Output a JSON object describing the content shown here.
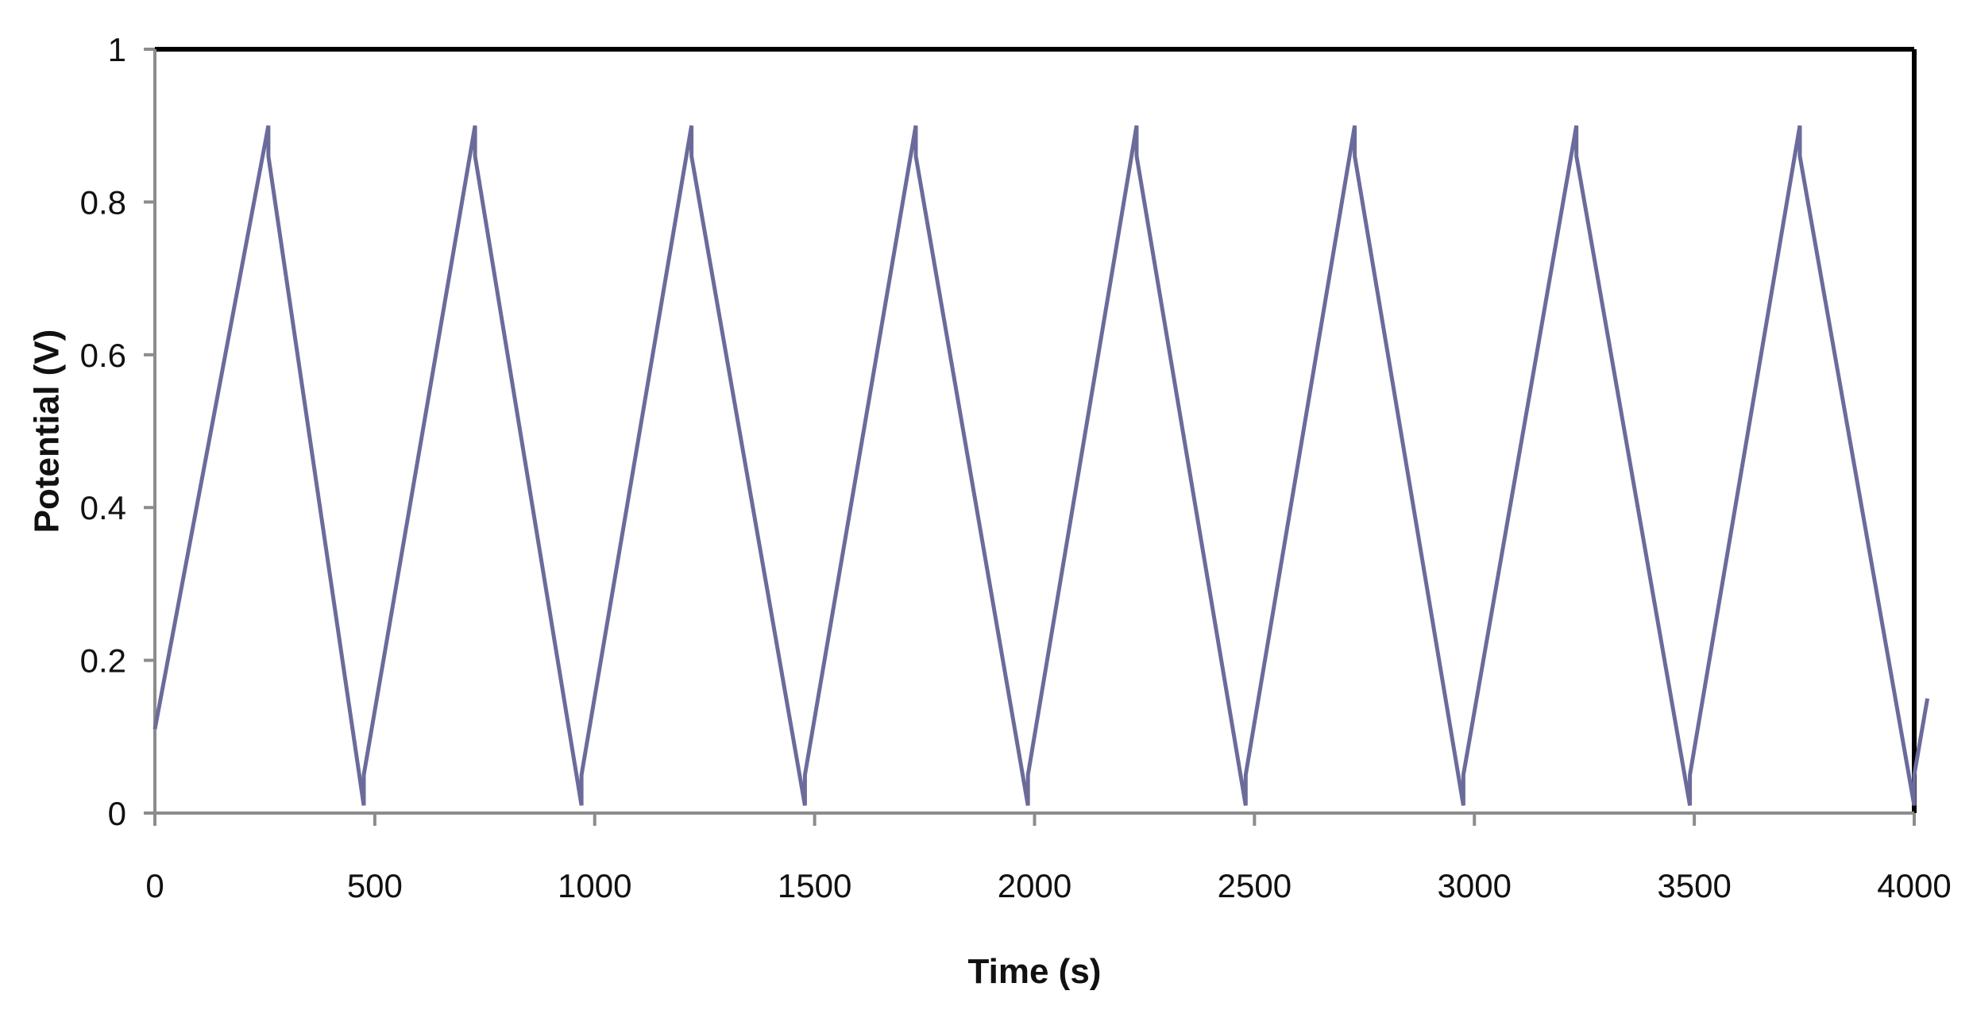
{
  "chart_data": {
    "type": "line",
    "title": "",
    "xlabel": "Time (s)",
    "ylabel": "Potential (V)",
    "xlim": [
      0,
      4000
    ],
    "ylim": [
      0,
      1
    ],
    "x_ticks": [
      0,
      500,
      1000,
      1500,
      2000,
      2500,
      3000,
      3500,
      4000
    ],
    "y_ticks": [
      0,
      0.2,
      0.4,
      0.6,
      0.8,
      1
    ],
    "y_tick_labels": [
      "0",
      "0.2",
      "0.4",
      "0.6",
      "0.8",
      "1"
    ],
    "grid": false,
    "legend": "none",
    "series": [
      {
        "color": "#6b6b9b",
        "x": [
          0,
          258,
          258,
          475,
          475,
          728,
          728,
          970,
          970,
          1220,
          1220,
          1478,
          1478,
          1730,
          1730,
          1985,
          1985,
          2232,
          2232,
          2480,
          2480,
          2728,
          2728,
          2975,
          2975,
          3232,
          3232,
          3490,
          3490,
          3740,
          3740,
          4000,
          4000,
          4030
        ],
        "y": [
          0.11,
          0.9,
          0.86,
          0.01,
          0.05,
          0.9,
          0.86,
          0.01,
          0.05,
          0.9,
          0.86,
          0.01,
          0.05,
          0.9,
          0.86,
          0.01,
          0.05,
          0.9,
          0.86,
          0.01,
          0.05,
          0.9,
          0.86,
          0.01,
          0.05,
          0.9,
          0.86,
          0.01,
          0.05,
          0.9,
          0.86,
          0.01,
          0.05,
          0.15
        ]
      }
    ]
  }
}
